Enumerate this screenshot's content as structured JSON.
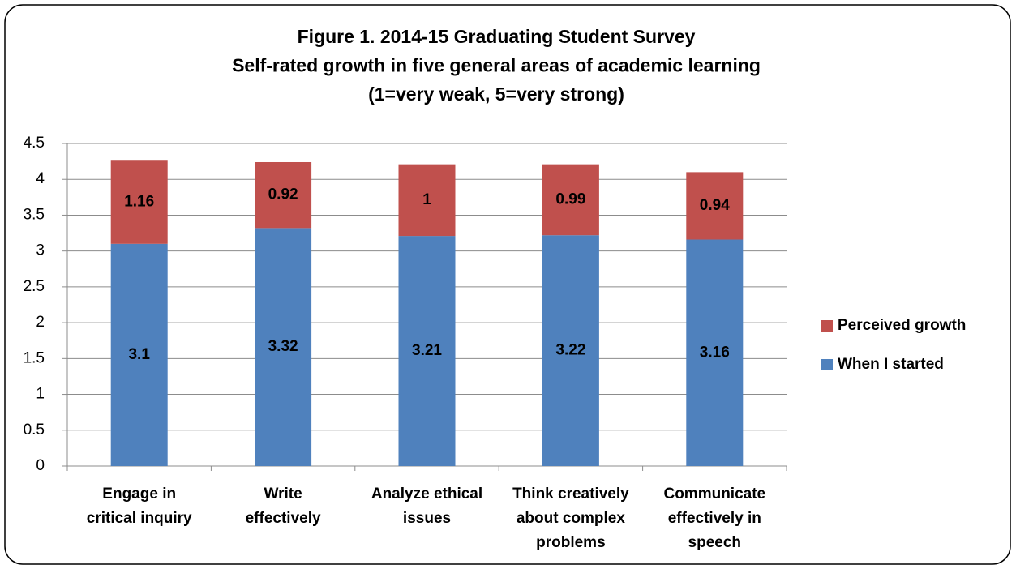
{
  "chart_data": {
    "type": "stacked_bar",
    "title": [
      "Figure 1. 2014-15 Graduating Student Survey",
      "Self-rated growth in five general areas of academic learning",
      "(1=very weak, 5=very strong)"
    ],
    "categories": [
      [
        "Engage in",
        "critical inquiry"
      ],
      [
        "Write",
        "effectively"
      ],
      [
        "Analyze ethical",
        "issues"
      ],
      [
        "Think creatively",
        "about complex",
        "problems"
      ],
      [
        "Communicate",
        "effectively in",
        "speech"
      ]
    ],
    "series": [
      {
        "name": "When I started",
        "color": "#4f81bd",
        "values": [
          3.1,
          3.32,
          3.21,
          3.22,
          3.16
        ]
      },
      {
        "name": "Perceived growth",
        "color": "#c0504d",
        "values": [
          1.16,
          0.92,
          1,
          0.99,
          0.94
        ]
      }
    ],
    "ylim": [
      0,
      4.5
    ],
    "yticks": [
      0,
      0.5,
      1,
      1.5,
      2,
      2.5,
      3,
      3.5,
      4,
      4.5
    ],
    "grid": true,
    "legend": "right"
  }
}
